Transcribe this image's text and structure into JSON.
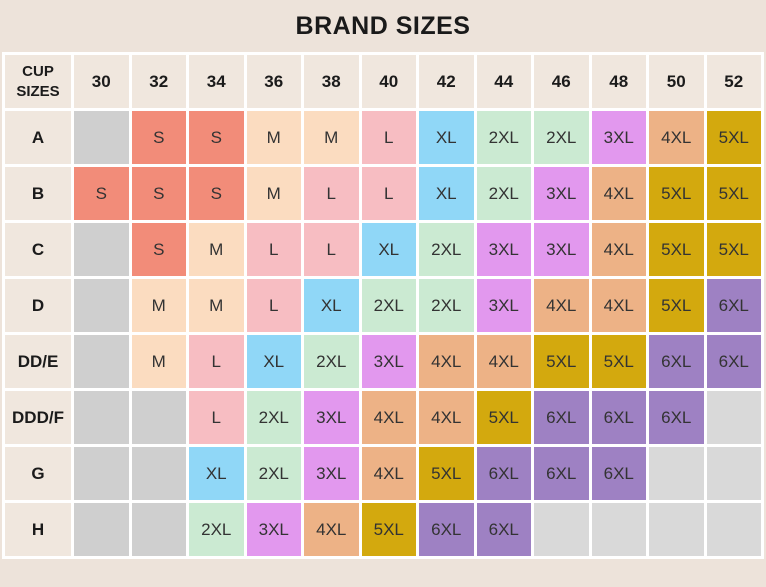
{
  "title": "BRAND SIZES",
  "chart_data": {
    "type": "table",
    "title": "BRAND SIZES",
    "corner_label": "CUP SIZES",
    "columns": [
      "30",
      "32",
      "34",
      "36",
      "38",
      "40",
      "42",
      "44",
      "46",
      "48",
      "50",
      "52"
    ],
    "row_labels": [
      "A",
      "B",
      "C",
      "D",
      "DD/E",
      "DDD/F",
      "G",
      "H"
    ],
    "rows": [
      [
        "",
        "S",
        "S",
        "M",
        "M",
        "L",
        "XL",
        "2XL",
        "2XL",
        "3XL",
        "4XL",
        "5XL"
      ],
      [
        "S",
        "S",
        "S",
        "M",
        "L",
        "L",
        "XL",
        "2XL",
        "3XL",
        "4XL",
        "5XL",
        "5XL"
      ],
      [
        "",
        "S",
        "M",
        "L",
        "L",
        "XL",
        "2XL",
        "3XL",
        "3XL",
        "4XL",
        "5XL",
        "5XL"
      ],
      [
        "",
        "M",
        "M",
        "L",
        "XL",
        "2XL",
        "2XL",
        "3XL",
        "4XL",
        "4XL",
        "5XL",
        "6XL"
      ],
      [
        "",
        "M",
        "L",
        "XL",
        "2XL",
        "3XL",
        "4XL",
        "4XL",
        "5XL",
        "5XL",
        "6XL",
        "6XL"
      ],
      [
        "",
        "",
        "L",
        "2XL",
        "3XL",
        "4XL",
        "4XL",
        "5XL",
        "6XL",
        "6XL",
        "6XL",
        ""
      ],
      [
        "",
        "",
        "XL",
        "2XL",
        "3XL",
        "4XL",
        "5XL",
        "6XL",
        "6XL",
        "6XL",
        "",
        ""
      ],
      [
        "",
        "",
        "2XL",
        "3XL",
        "4XL",
        "5XL",
        "6XL",
        "6XL",
        "",
        "",
        "",
        ""
      ]
    ],
    "layout": {
      "grid": "on",
      "header_row": true,
      "header_column": true
    }
  },
  "colors": {
    "S": "#F28C79",
    "M": "#FBDCC0",
    "L": "#F7BDC2",
    "XL": "#90D7F7",
    "2XL": "#CBEAD2",
    "3XL": "#E298EE",
    "4XL": "#EDB286",
    "5XL": "#D3A90E",
    "6XL": "#9E81C3",
    "empty_leading": "#CFCFCF",
    "empty_trailing": "#D9D9D9",
    "header_bg": "#F0E7DE",
    "page_bg": "#EDE3DA",
    "grid_line": "#FFFFFF",
    "title_color": "#1A1A1A",
    "cell_text": "#333333",
    "header_text": "#1B1B1B"
  }
}
